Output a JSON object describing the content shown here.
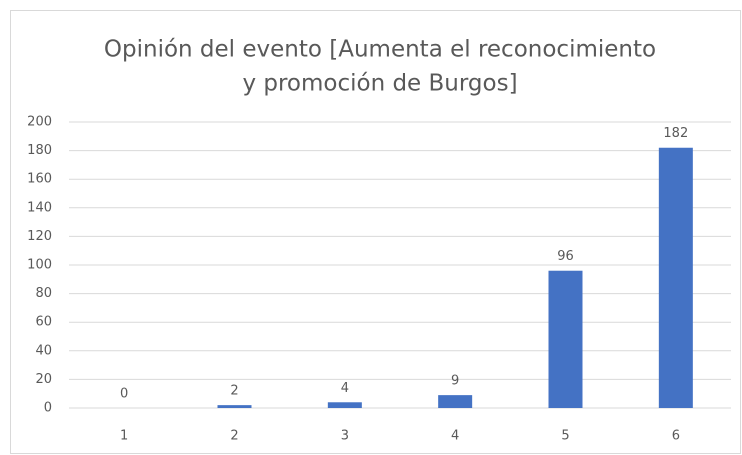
{
  "chart_data": {
    "type": "bar",
    "title": [
      "Opinión del evento [Aumenta el reconocimiento",
      "y promoción de Burgos]"
    ],
    "categories": [
      "1",
      "2",
      "3",
      "4",
      "5",
      "6"
    ],
    "values": [
      0,
      2,
      4,
      9,
      96,
      182
    ],
    "color": "#4472c4",
    "ylim": [
      0,
      200
    ],
    "yticks": [
      0,
      20,
      40,
      60,
      80,
      100,
      120,
      140,
      160,
      180,
      200
    ],
    "grid": true
  }
}
